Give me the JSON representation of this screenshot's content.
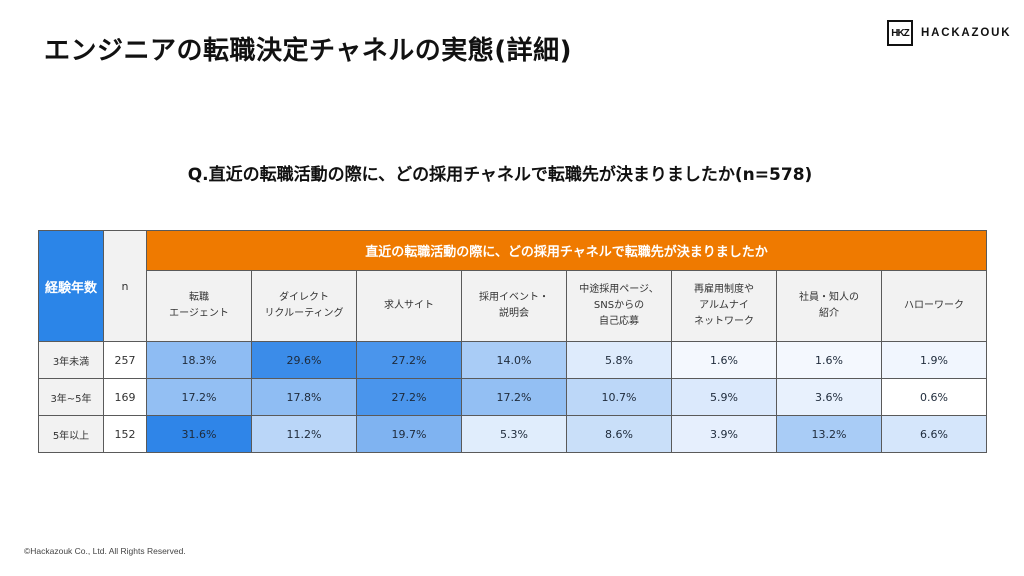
{
  "header": {
    "title": "エンジニアの転職決定チャネルの実態(詳細)",
    "logo_mark": "HKZ",
    "logo_text": "HACKAZOUK"
  },
  "question": "Q.直近の転職活動の際に、どの採用チャネルで転職先が決まりましたか(n=578)",
  "table": {
    "col_experience": "経験年数",
    "col_n": "n",
    "group_header": "直近の転職活動の際に、どの採用チャネルで転職先が決まりましたか",
    "channels": [
      "転職\nエージェント",
      "ダイレクト\nリクルーティング",
      "求人サイト",
      "採用イベント・\n説明会",
      "中途採用ページ、\nSNSからの\n自己応募",
      "再雇用制度や\nアルムナイ\nネットワーク",
      "社員・知人の\n紹介",
      "ハローワーク"
    ],
    "rows": [
      {
        "label": "3年未満",
        "n": "257",
        "values": [
          "18.3%",
          "29.6%",
          "27.2%",
          "14.0%",
          "5.8%",
          "1.6%",
          "1.6%",
          "1.9%"
        ],
        "colors": [
          "#8ebcf3",
          "#3b8ce9",
          "#4a95ec",
          "#a9ccf6",
          "#deebfc",
          "#f4f8fe",
          "#f4f8fe",
          "#f1f6fe"
        ]
      },
      {
        "label": "3年~5年",
        "n": "169",
        "values": [
          "17.2%",
          "17.8%",
          "27.2%",
          "17.2%",
          "10.7%",
          "5.9%",
          "3.6%",
          "0.6%"
        ],
        "colors": [
          "#93bff3",
          "#8fbdf3",
          "#4a95ec",
          "#93bff3",
          "#bcd7f8",
          "#dbe9fc",
          "#e8f1fd",
          "#ffffff"
        ]
      },
      {
        "label": "5年以上",
        "n": "152",
        "values": [
          "31.6%",
          "11.2%",
          "19.7%",
          "5.3%",
          "8.6%",
          "3.9%",
          "13.2%",
          "6.6%"
        ],
        "colors": [
          "#2f85e8",
          "#bad6f8",
          "#7fb3f1",
          "#e0edfc",
          "#c9dff9",
          "#e6effd",
          "#a9ccf6",
          "#d5e6fb"
        ]
      }
    ]
  },
  "chart_data": {
    "type": "heatmap",
    "title": "直近の転職活動の際に、どの採用チャネルで転職先が決まりましたか",
    "subtitle": "Q.直近の転職活動の際に、どの採用チャネルで転職先が決まりましたか(n=578)",
    "row_header": "経験年数",
    "rows": [
      "3年未満",
      "3年~5年",
      "5年以上"
    ],
    "n": [
      257,
      169,
      152
    ],
    "columns": [
      "転職エージェント",
      "ダイレクトリクルーティング",
      "求人サイト",
      "採用イベント・説明会",
      "中途採用ページ、SNSからの自己応募",
      "再雇用制度やアルムナイネットワーク",
      "社員・知人の紹介",
      "ハローワーク"
    ],
    "values": [
      [
        18.3,
        29.6,
        27.2,
        14.0,
        5.8,
        1.6,
        1.6,
        1.9
      ],
      [
        17.2,
        17.8,
        27.2,
        17.2,
        10.7,
        5.9,
        3.6,
        0.6
      ],
      [
        31.6,
        11.2,
        19.7,
        5.3,
        8.6,
        3.9,
        13.2,
        6.6
      ]
    ],
    "unit": "%"
  },
  "footer": "©Hackazouk Co., Ltd. All Rights Reserved."
}
